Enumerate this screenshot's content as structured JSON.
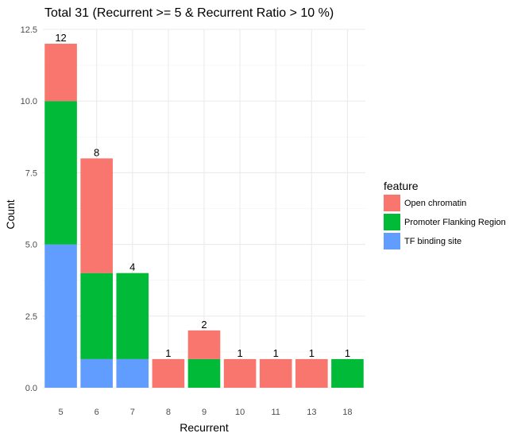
{
  "chart_data": {
    "type": "bar",
    "stacked": true,
    "title": "Total  31  (Recurrent >= 5 & Recurrent Ratio > 10 %)",
    "xlabel": "Recurrent",
    "ylabel": "Count",
    "categories": [
      "5",
      "6",
      "7",
      "8",
      "9",
      "10",
      "11",
      "13",
      "18"
    ],
    "series": [
      {
        "name": "TF binding site",
        "color": "#619cff",
        "values": [
          5,
          1,
          1,
          0,
          0,
          0,
          0,
          0,
          0
        ]
      },
      {
        "name": "Promoter Flanking Region",
        "color": "#00ba38",
        "values": [
          5,
          3,
          3,
          0,
          1,
          0,
          0,
          0,
          1
        ]
      },
      {
        "name": "Open chromatin",
        "color": "#f8766d",
        "values": [
          2,
          4,
          0,
          1,
          1,
          1,
          1,
          1,
          0
        ]
      }
    ],
    "totals": [
      "12",
      "8",
      "4",
      "1",
      "2",
      "1",
      "1",
      "1",
      "1"
    ],
    "ylim": [
      0,
      12.5
    ],
    "yticks": [
      "0.0",
      "2.5",
      "5.0",
      "7.5",
      "10.0",
      "12.5"
    ],
    "grid": true,
    "legend": {
      "title": "feature",
      "position": "right",
      "entries": [
        "Open chromatin",
        "Promoter Flanking Region",
        "TF binding site"
      ],
      "colors": [
        "#f8766d",
        "#00ba38",
        "#619cff"
      ]
    }
  }
}
